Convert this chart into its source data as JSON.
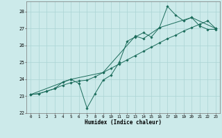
{
  "xlabel": "Humidex (Indice chaleur)",
  "xlim": [
    -0.5,
    23.5
  ],
  "ylim": [
    22.0,
    28.6
  ],
  "yticks": [
    22,
    23,
    24,
    25,
    26,
    27,
    28
  ],
  "xticks": [
    0,
    1,
    2,
    3,
    4,
    5,
    6,
    7,
    8,
    9,
    10,
    11,
    12,
    13,
    14,
    15,
    16,
    17,
    18,
    19,
    20,
    21,
    22,
    23
  ],
  "bg_color": "#cceaea",
  "grid_color": "#aad4d4",
  "line_color": "#1a6b5a",
  "line1_x": [
    0,
    1,
    2,
    3,
    4,
    5,
    6,
    7,
    8,
    9,
    10,
    11,
    12,
    13,
    14,
    15,
    16,
    17,
    18,
    19,
    20,
    21,
    22,
    23
  ],
  "line1_y": [
    23.1,
    23.15,
    23.3,
    23.45,
    23.65,
    23.8,
    23.9,
    23.95,
    24.15,
    24.4,
    24.65,
    24.9,
    25.15,
    25.4,
    25.65,
    25.9,
    26.15,
    26.4,
    26.6,
    26.85,
    27.05,
    27.25,
    27.45,
    27.0
  ],
  "line2_x": [
    0,
    1,
    2,
    3,
    4,
    5,
    6,
    7,
    8,
    9,
    10,
    11,
    12,
    13,
    14,
    15,
    16,
    17,
    18,
    19,
    20,
    21,
    22,
    23
  ],
  "line2_y": [
    23.1,
    23.15,
    23.3,
    23.45,
    23.85,
    24.0,
    23.75,
    22.3,
    23.15,
    23.95,
    24.25,
    25.0,
    26.25,
    26.5,
    26.75,
    26.5,
    27.05,
    28.3,
    27.8,
    27.45,
    27.65,
    27.15,
    26.95,
    26.95
  ],
  "line3_x": [
    0,
    5,
    9,
    13,
    14,
    16,
    20,
    23
  ],
  "line3_y": [
    23.1,
    24.0,
    24.4,
    26.55,
    26.4,
    27.05,
    27.65,
    27.0
  ]
}
